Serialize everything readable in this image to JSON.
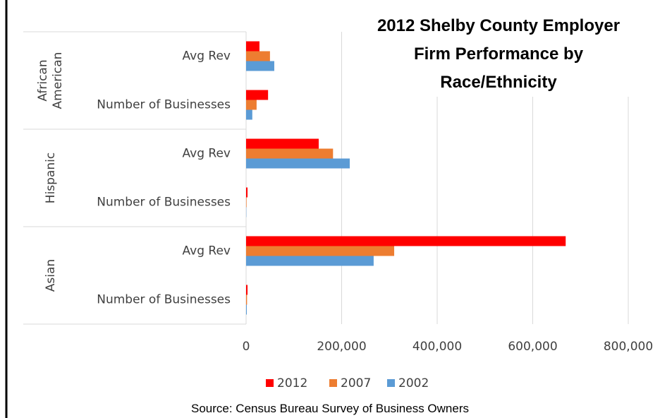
{
  "chart_data": {
    "type": "bar",
    "orientation": "horizontal",
    "title": "2012 Shelby County Employer Firm Performance by Race/Ethnicity",
    "groups": [
      "African American",
      "Hispanic",
      "Asian"
    ],
    "categories": [
      "Avg Rev",
      "Number of Businesses",
      "Avg Rev",
      "Number of Businesses",
      "Avg Rev",
      "Number of Businesses"
    ],
    "series": [
      {
        "name": "2012",
        "color": "#ff0000",
        "values": [
          28000,
          46000,
          152000,
          3000,
          669000,
          3000
        ]
      },
      {
        "name": "2007",
        "color": "#ed7d31",
        "values": [
          50000,
          22000,
          182000,
          1000,
          310000,
          2000
        ]
      },
      {
        "name": "2002",
        "color": "#5b9bd5",
        "values": [
          59000,
          13000,
          217000,
          500,
          267000,
          1500
        ]
      }
    ],
    "xlim": [
      0,
      800000
    ],
    "xticks": [
      0,
      {
        "value": 200000,
        "label": "200,000"
      },
      {
        "value": 400000,
        "label": "400,000"
      },
      {
        "value": 600000,
        "label": "600,000"
      },
      {
        "value": 800000,
        "label": "800,000"
      }
    ],
    "grid": true,
    "legend": "bottom",
    "source": "Source: Census Bureau Survey of Business Owners"
  }
}
